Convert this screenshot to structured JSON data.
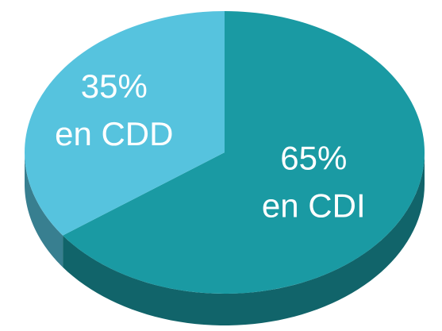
{
  "chart_data": {
    "type": "pie",
    "categories": [
      "en CDD",
      "en CDI"
    ],
    "values": [
      35,
      65
    ],
    "value_labels": [
      "35%",
      "65%"
    ],
    "colors": [
      "#56c3de",
      "#1a9aa3"
    ]
  }
}
